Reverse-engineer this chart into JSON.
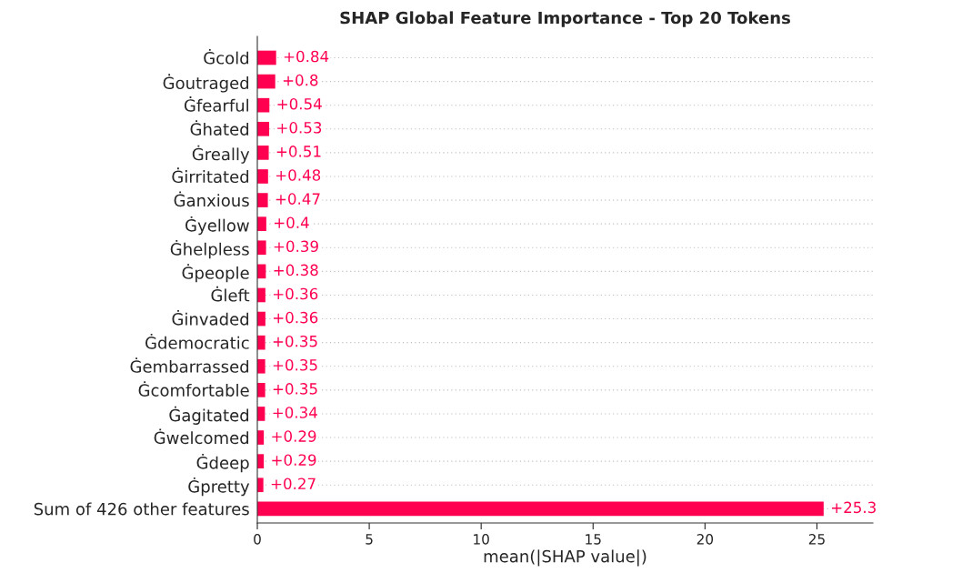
{
  "chart_data": {
    "type": "bar",
    "orientation": "horizontal",
    "title": "SHAP Global Feature Importance - Top 20 Tokens",
    "xlabel": "mean(|SHAP value|)",
    "categories": [
      "Ġcold",
      "Ġoutraged",
      "Ġfearful",
      "Ġhated",
      "Ġreally",
      "Ġirritated",
      "Ġanxious",
      "Ġyellow",
      "Ġhelpless",
      "Ġpeople",
      "Ġleft",
      "Ġinvaded",
      "Ġdemocratic",
      "Ġembarrassed",
      "Ġcomfortable",
      "Ġagitated",
      "Ġwelcomed",
      "Ġdeep",
      "Ġpretty",
      "Sum of 426 other features"
    ],
    "values": [
      0.84,
      0.8,
      0.54,
      0.53,
      0.51,
      0.48,
      0.47,
      0.4,
      0.39,
      0.38,
      0.36,
      0.36,
      0.35,
      0.35,
      0.35,
      0.34,
      0.29,
      0.29,
      0.27,
      25.3
    ],
    "value_labels": [
      "+0.84",
      "+0.8",
      "+0.54",
      "+0.53",
      "+0.51",
      "+0.48",
      "+0.47",
      "+0.4",
      "+0.39",
      "+0.38",
      "+0.36",
      "+0.36",
      "+0.35",
      "+0.35",
      "+0.35",
      "+0.34",
      "+0.29",
      "+0.29",
      "+0.27",
      "+25.3"
    ],
    "color": "#ff0051",
    "xlim": [
      0,
      27.5
    ],
    "xticks": [
      0,
      5,
      10,
      15,
      20,
      25
    ],
    "grid": "y",
    "legend": false
  }
}
